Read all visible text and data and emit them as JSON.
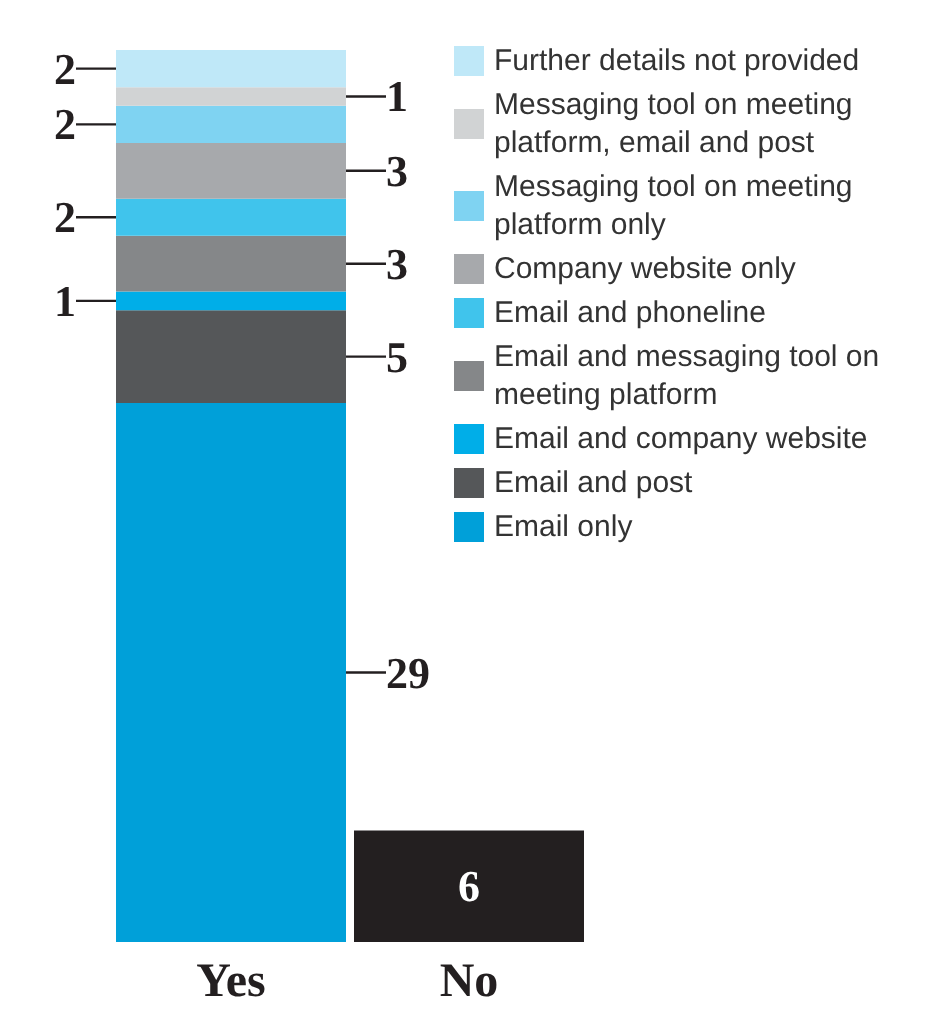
{
  "chart_data": {
    "type": "bar",
    "stacked": true,
    "categories": [
      "Yes",
      "No"
    ],
    "tick_labels": "x",
    "data_labels": true,
    "legend": "right",
    "series": [
      {
        "name": "Email only",
        "color": "#00a0d9",
        "values": [
          29,
          null
        ]
      },
      {
        "name": "Email and post",
        "color": "#555759",
        "values": [
          5,
          null
        ]
      },
      {
        "name": "Email and company website",
        "color": "#00aee8",
        "values": [
          1,
          null
        ]
      },
      {
        "name": "Email and messaging tool on meeting platform",
        "color": "#858789",
        "values": [
          3,
          null
        ]
      },
      {
        "name": "Email and phoneline",
        "color": "#40c4ec",
        "values": [
          2,
          null
        ]
      },
      {
        "name": "Company website only",
        "color": "#a7a9ac",
        "values": [
          3,
          null
        ]
      },
      {
        "name": "Messaging tool on meeting platform only",
        "color": "#7fd3f2",
        "values": [
          2,
          null
        ]
      },
      {
        "name": "Messaging tool on meeting platform, email and post",
        "color": "#d1d3d4",
        "values": [
          1,
          null
        ]
      },
      {
        "name": "Further details not provided",
        "color": "#bfe8f8",
        "values": [
          2,
          null
        ]
      },
      {
        "color": "#231f20",
        "values": [
          null,
          6
        ]
      }
    ]
  }
}
